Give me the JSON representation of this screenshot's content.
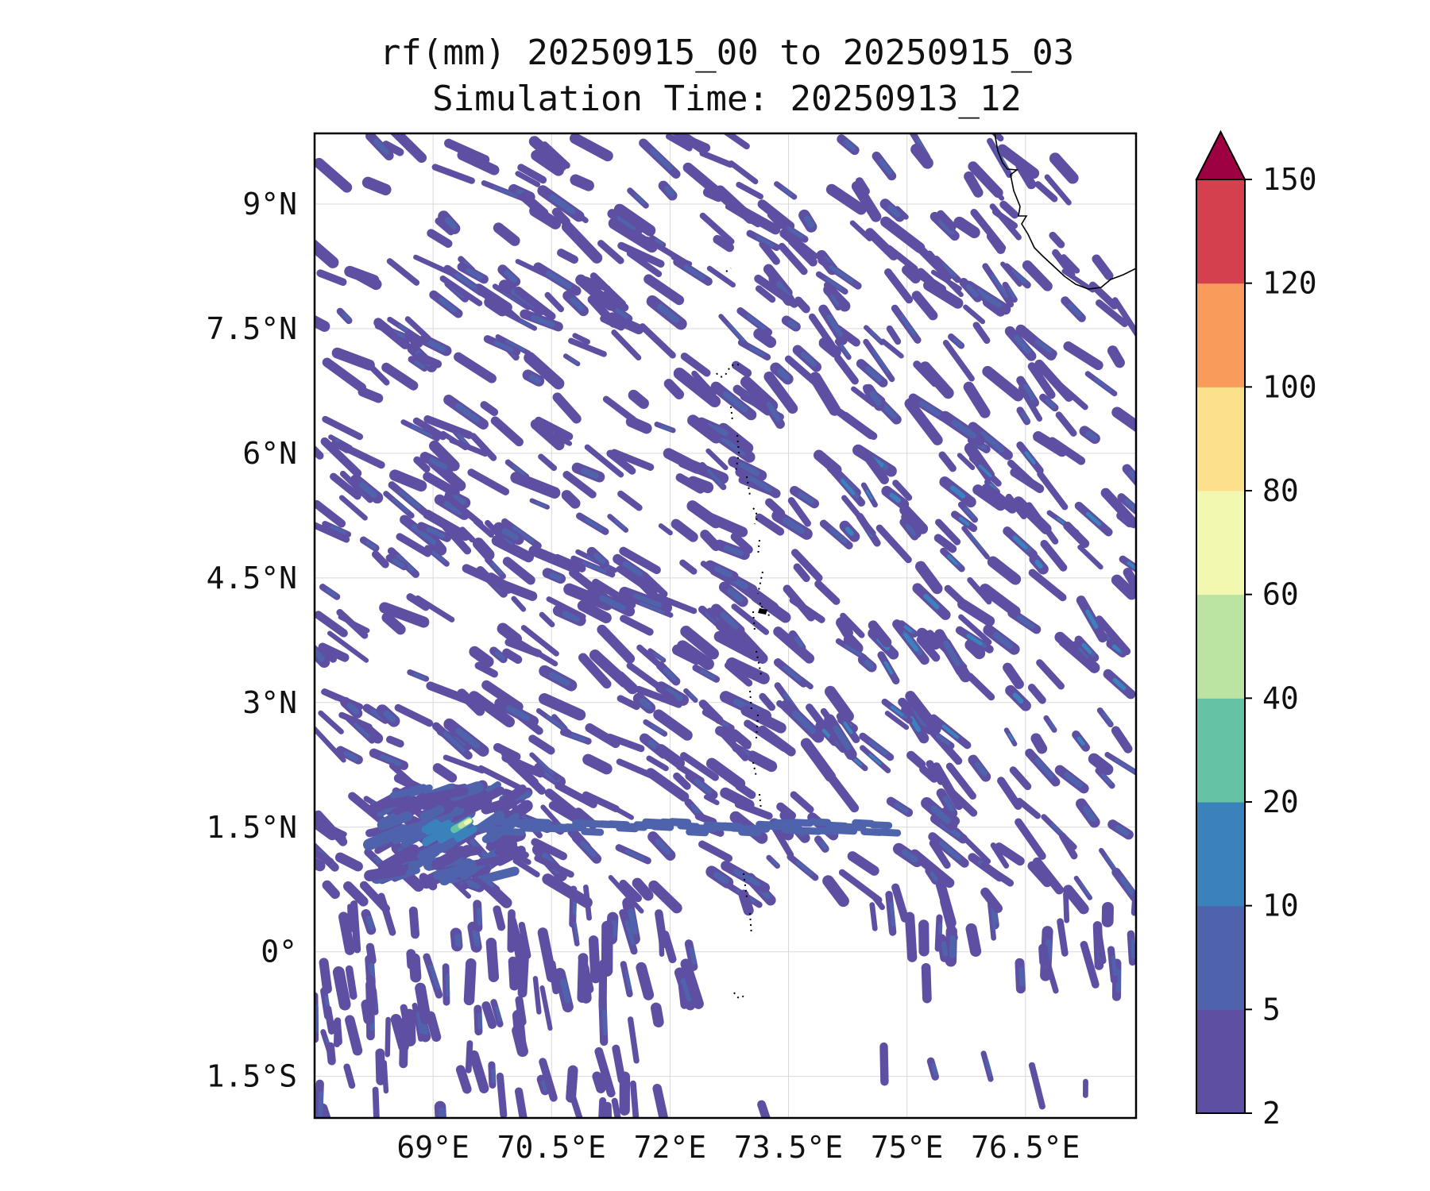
{
  "title": {
    "line1": "rf(mm) 20250915_00 to 20250915_03",
    "line2": "Simulation Time: 20250913_12"
  },
  "map": {
    "lon_range": [
      67.5,
      77.9
    ],
    "lat_range": [
      -2.0,
      9.85
    ],
    "lon_ticks": [
      {
        "value": 69.0,
        "label": "69°E"
      },
      {
        "value": 70.5,
        "label": "70.5°E"
      },
      {
        "value": 72.0,
        "label": "72°E"
      },
      {
        "value": 73.5,
        "label": "73.5°E"
      },
      {
        "value": 75.0,
        "label": "75°E"
      },
      {
        "value": 76.5,
        "label": "76.5°E"
      }
    ],
    "lat_ticks": [
      {
        "value": 9.0,
        "label": "9°N"
      },
      {
        "value": 7.5,
        "label": "7.5°N"
      },
      {
        "value": 6.0,
        "label": "6°N"
      },
      {
        "value": 4.5,
        "label": "4.5°N"
      },
      {
        "value": 3.0,
        "label": "3°N"
      },
      {
        "value": 1.5,
        "label": "1.5°N"
      },
      {
        "value": 0.0,
        "label": "0°"
      },
      {
        "value": -1.5,
        "label": "1.5°S"
      }
    ],
    "gridlines": true,
    "colors": {
      "land_outline": "#000000",
      "gridline": "#d9d9d9"
    }
  },
  "colorbar": {
    "placement": "right",
    "extend": "max",
    "extend_color": "#9e0142",
    "levels": [
      {
        "value": 2,
        "label": "2"
      },
      {
        "value": 5,
        "label": "5"
      },
      {
        "value": 10,
        "label": "10"
      },
      {
        "value": 20,
        "label": "20"
      },
      {
        "value": 40,
        "label": "40"
      },
      {
        "value": 60,
        "label": "60"
      },
      {
        "value": 80,
        "label": "80"
      },
      {
        "value": 100,
        "label": "100"
      },
      {
        "value": 120,
        "label": "120"
      },
      {
        "value": 150,
        "label": "150"
      }
    ],
    "colors": [
      "#5e4fa2",
      "#4f63ad",
      "#3a82bb",
      "#66c2a5",
      "#bbe3a1",
      "#f3f8b1",
      "#fde08b",
      "#f99b5a",
      "#d5404e"
    ]
  }
}
